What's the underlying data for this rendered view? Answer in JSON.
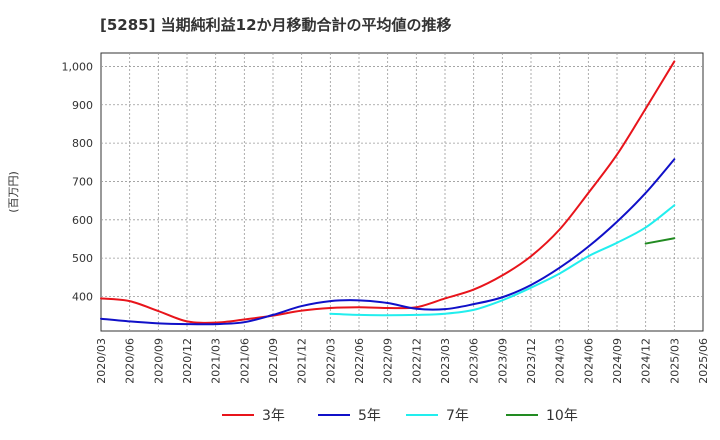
{
  "chart_data": {
    "type": "line",
    "title": "[5285]  当期純利益12か月移動合計の平均値の推移",
    "ylabel": "(百万円)",
    "xlabel": "",
    "x_ticks": [
      "2020/03",
      "2020/06",
      "2020/09",
      "2020/12",
      "2021/03",
      "2021/06",
      "2021/09",
      "2021/12",
      "2022/03",
      "2022/06",
      "2022/09",
      "2022/12",
      "2023/03",
      "2023/06",
      "2023/09",
      "2023/12",
      "2024/03",
      "2024/06",
      "2024/09",
      "2024/12",
      "2025/03",
      "2025/06"
    ],
    "y_ticks": [
      400,
      500,
      600,
      700,
      800,
      900,
      1000
    ],
    "y_tick_labels": [
      "400",
      "500",
      "600",
      "700",
      "800",
      "900",
      "1,000"
    ],
    "ylim": [
      310,
      1035
    ],
    "grid": true,
    "legend_position": "bottom",
    "series": [
      {
        "name": "3年",
        "color": "#e8141b",
        "x": [
          "2020/03",
          "2020/06",
          "2020/09",
          "2020/12",
          "2021/03",
          "2021/06",
          "2021/09",
          "2021/12",
          "2022/03",
          "2022/06",
          "2022/09",
          "2022/12",
          "2023/03",
          "2023/06",
          "2023/09",
          "2023/12",
          "2024/03",
          "2024/06",
          "2024/09",
          "2024/12",
          "2025/03"
        ],
        "values": [
          395,
          388,
          362,
          335,
          332,
          340,
          350,
          363,
          370,
          372,
          370,
          372,
          395,
          418,
          455,
          505,
          575,
          670,
          770,
          890,
          1013
        ]
      },
      {
        "name": "5年",
        "color": "#1010c8",
        "x": [
          "2020/03",
          "2020/06",
          "2020/09",
          "2020/12",
          "2021/03",
          "2021/06",
          "2021/09",
          "2021/12",
          "2022/03",
          "2022/06",
          "2022/09",
          "2022/12",
          "2023/03",
          "2023/06",
          "2023/09",
          "2023/12",
          "2024/03",
          "2024/06",
          "2024/09",
          "2024/12",
          "2025/03"
        ],
        "values": [
          342,
          335,
          330,
          328,
          328,
          333,
          352,
          375,
          388,
          390,
          383,
          368,
          367,
          380,
          398,
          430,
          475,
          530,
          595,
          670,
          758
        ]
      },
      {
        "name": "7年",
        "color": "#22eeee",
        "x": [
          "2022/03",
          "2022/06",
          "2022/09",
          "2022/12",
          "2023/03",
          "2023/06",
          "2023/09",
          "2023/12",
          "2024/03",
          "2024/06",
          "2024/09",
          "2024/12",
          "2025/03"
        ],
        "values": [
          355,
          352,
          351,
          352,
          355,
          365,
          390,
          423,
          460,
          505,
          540,
          580,
          638
        ]
      },
      {
        "name": "10年",
        "color": "#228b22",
        "x": [
          "2024/12",
          "2025/03"
        ],
        "values": [
          538,
          552
        ]
      }
    ]
  }
}
